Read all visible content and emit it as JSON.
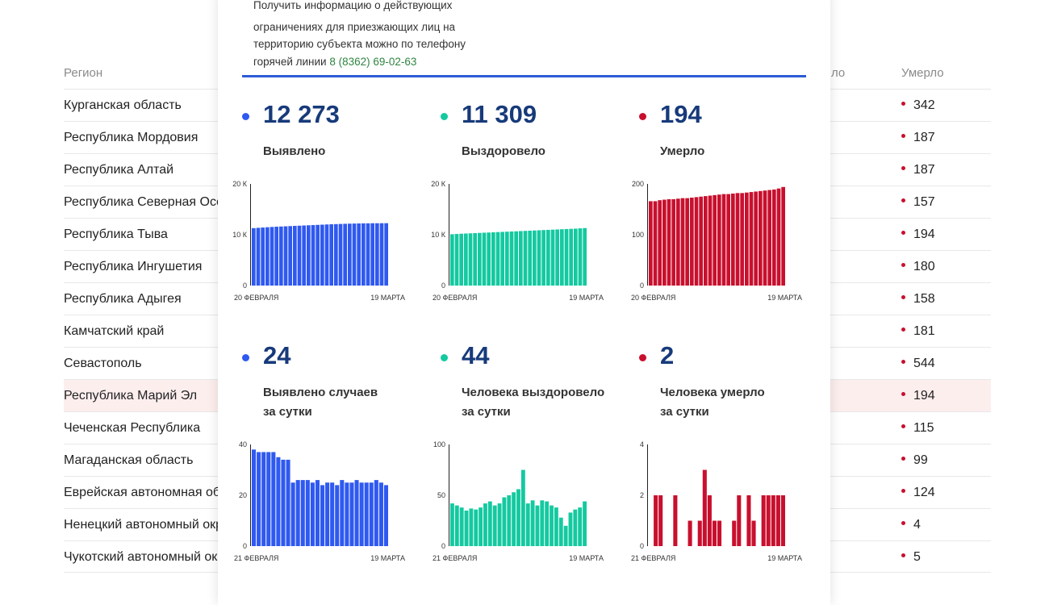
{
  "table": {
    "headers": {
      "region": "Регион",
      "partial": "ло",
      "dead": "Умерло"
    },
    "rows": [
      {
        "region": "Курганская область",
        "dead": "342"
      },
      {
        "region": "Республика Мордовия",
        "dead": "187"
      },
      {
        "region": "Республика Алтай",
        "dead": "187"
      },
      {
        "region": "Республика Северная Осетия",
        "dead": "157"
      },
      {
        "region": "Республика Тыва",
        "dead": "194"
      },
      {
        "region": "Республика Ингушетия",
        "dead": "180"
      },
      {
        "region": "Республика Адыгея",
        "dead": "158"
      },
      {
        "region": "Камчатский край",
        "dead": "181"
      },
      {
        "region": "Севастополь",
        "dead": "544"
      },
      {
        "region": "Республика Марий Эл",
        "dead": "194",
        "highlight": true
      },
      {
        "region": "Чеченская Республика",
        "dead": "115"
      },
      {
        "region": "Магаданская область",
        "dead": "99"
      },
      {
        "region": "Еврейская автономная область",
        "dead": "124"
      },
      {
        "region": "Ненецкий автономный округ",
        "dead": "4"
      },
      {
        "region": "Чукотский автономный округ",
        "dead": "5"
      }
    ]
  },
  "modal": {
    "info_lines": [
      "ограничениях для приезжающих лиц на",
      "территорию субъекта можно по телефону",
      "горячей линии"
    ],
    "info_top": "Получить информацию о действующих",
    "phone": "8 (8362) 69-02-63",
    "colors": {
      "blue": "#2f59f0",
      "green": "#14c9a0",
      "red": "#c8102e",
      "divider": "#2d5bd7"
    },
    "stats": [
      {
        "value": "12 273",
        "label1": "Выявлено",
        "label2": "",
        "color": "blue"
      },
      {
        "value": "11 309",
        "label1": "Выздоровело",
        "label2": "",
        "color": "green"
      },
      {
        "value": "194",
        "label1": "Умерло",
        "label2": "",
        "color": "red"
      },
      {
        "value": "24",
        "label1": "Выявлено случаев",
        "label2": "за сутки",
        "color": "blue"
      },
      {
        "value": "44",
        "label1": "Человека выздоровело",
        "label2": "за сутки",
        "color": "green"
      },
      {
        "value": "2",
        "label1": "Человека умерло",
        "label2": "за сутки",
        "color": "red"
      }
    ]
  },
  "chart_data": [
    {
      "type": "bar",
      "color": "blue",
      "yticks": [
        "20 К",
        "10 К",
        "0"
      ],
      "ylim": [
        0,
        20000
      ],
      "xlabels": [
        "20 ФЕВРАЛЯ",
        "19 МАРТА"
      ],
      "values": [
        11300,
        11360,
        11420,
        11480,
        11530,
        11580,
        11620,
        11660,
        11700,
        11740,
        11780,
        11820,
        11860,
        11900,
        11940,
        11980,
        12020,
        12060,
        12090,
        12120,
        12150,
        12180,
        12200,
        12220,
        12240,
        12250,
        12260,
        12265,
        12270,
        12273
      ]
    },
    {
      "type": "bar",
      "color": "green",
      "yticks": [
        "20 К",
        "10 К",
        "0"
      ],
      "ylim": [
        0,
        20000
      ],
      "xlabels": [
        "20 ФЕВРАЛЯ",
        "19 МАРТА"
      ],
      "values": [
        10100,
        10150,
        10200,
        10240,
        10280,
        10320,
        10360,
        10400,
        10440,
        10480,
        10520,
        10560,
        10600,
        10640,
        10680,
        10720,
        10760,
        10800,
        10840,
        10880,
        10920,
        10960,
        11000,
        11040,
        11080,
        11120,
        11160,
        11200,
        11260,
        11309
      ]
    },
    {
      "type": "bar",
      "color": "red",
      "yticks": [
        "200",
        "100",
        "0"
      ],
      "ylim": [
        0,
        200
      ],
      "xlabels": [
        "20 ФЕВРАЛЯ",
        "19 МАРТА"
      ],
      "values": [
        166,
        166,
        168,
        169,
        170,
        170,
        171,
        172,
        172,
        173,
        174,
        175,
        176,
        177,
        178,
        179,
        180,
        180,
        181,
        182,
        182,
        183,
        184,
        185,
        186,
        187,
        188,
        189,
        191,
        194
      ]
    },
    {
      "type": "bar",
      "color": "blue",
      "yticks": [
        "40",
        "20",
        "0"
      ],
      "ylim": [
        0,
        40
      ],
      "xlabels": [
        "21 ФЕВРАЛЯ",
        "19 МАРТА"
      ],
      "values": [
        38,
        37,
        37,
        37,
        37,
        35,
        34,
        34,
        25,
        26,
        26,
        26,
        25,
        26,
        24,
        25,
        25,
        24,
        26,
        25,
        25,
        26,
        25,
        25,
        25,
        26,
        25,
        24
      ]
    },
    {
      "type": "bar",
      "color": "green",
      "yticks": [
        "100",
        "50",
        "0"
      ],
      "ylim": [
        0,
        100
      ],
      "xlabels": [
        "21 ФЕВРАЛЯ",
        "19 МАРТА"
      ],
      "values": [
        42,
        40,
        38,
        35,
        37,
        36,
        38,
        42,
        44,
        40,
        42,
        48,
        50,
        53,
        56,
        75,
        42,
        45,
        40,
        45,
        44,
        40,
        38,
        28,
        20,
        33,
        36,
        38,
        44
      ]
    },
    {
      "type": "bar",
      "color": "red",
      "yticks": [
        "4",
        "2",
        "0"
      ],
      "ylim": [
        0,
        4
      ],
      "xlabels": [
        "21 ФЕВРАЛЯ",
        "19 МАРТА"
      ],
      "values": [
        0,
        2,
        2,
        0,
        0,
        2,
        0,
        0,
        1,
        0,
        1,
        3,
        2,
        1,
        1,
        0,
        0,
        1,
        2,
        0,
        2,
        1,
        0,
        2,
        2,
        2,
        2,
        2
      ]
    }
  ]
}
